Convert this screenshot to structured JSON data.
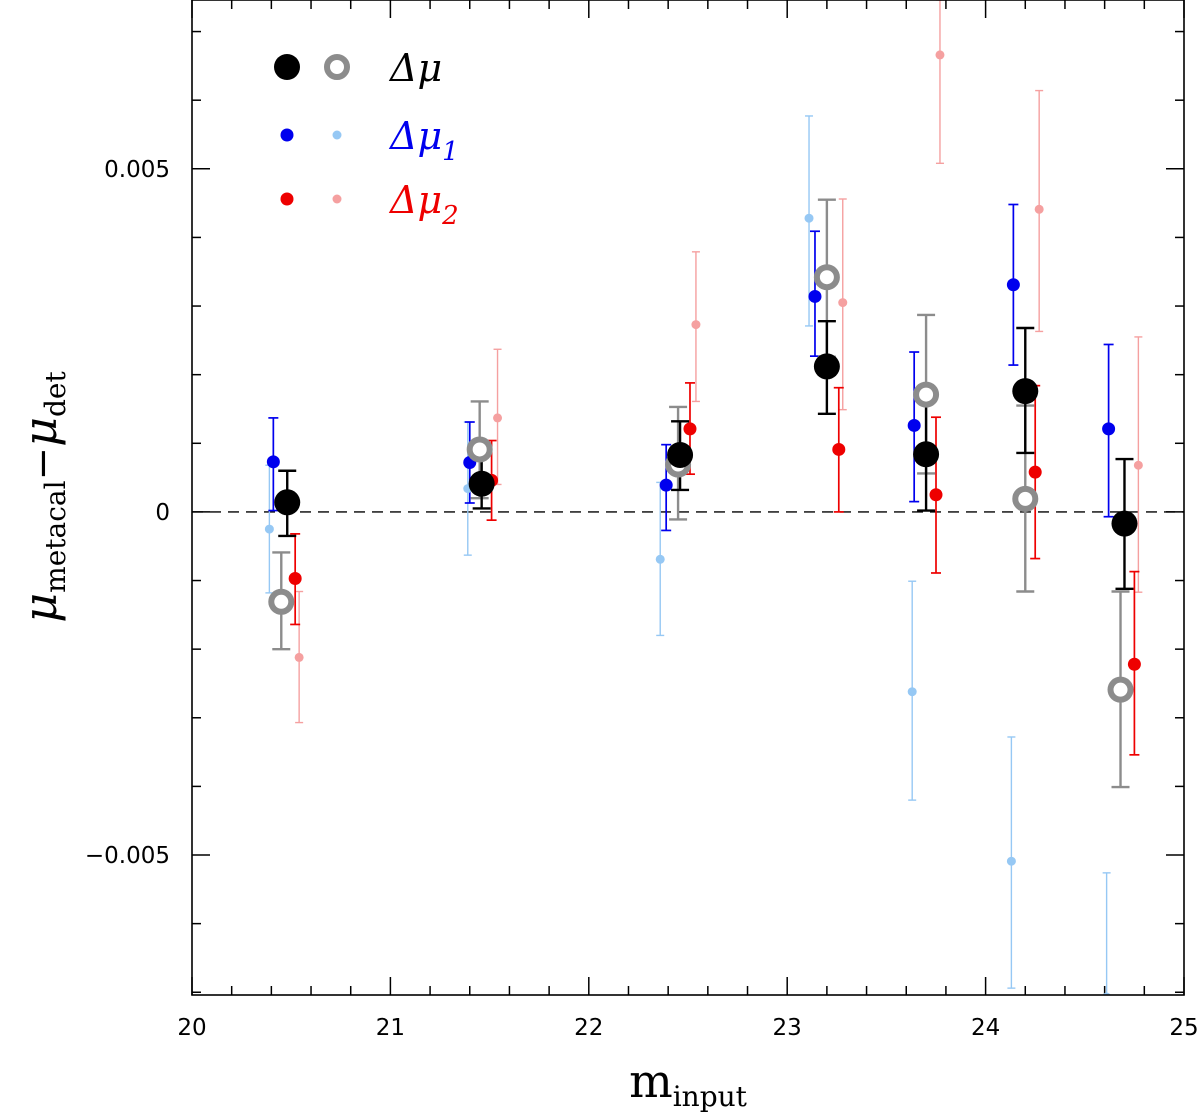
{
  "chart_data": {
    "type": "scatter",
    "title": "",
    "xlabel": {
      "main": "m",
      "sub": "input"
    },
    "ylabel": {
      "main": "μ",
      "sub1": "metacal",
      "minus": "−",
      "main2": "μ",
      "sub2": "det"
    },
    "xlim": [
      20,
      25
    ],
    "ylim": [
      -0.00704,
      0.00746
    ],
    "xticks": [
      {
        "value": 20,
        "label": "20"
      },
      {
        "value": 21,
        "label": "21"
      },
      {
        "value": 22,
        "label": "22"
      },
      {
        "value": 23,
        "label": "23"
      },
      {
        "value": 24,
        "label": "24"
      },
      {
        "value": 25,
        "label": "25"
      }
    ],
    "yticks": [
      {
        "value": -0.005,
        "label": "−0.005"
      },
      {
        "value": 0,
        "label": "0"
      },
      {
        "value": 0.005,
        "label": "0.005"
      }
    ],
    "reference_line": {
      "y": 0,
      "style": "dashed"
    },
    "legend": {
      "position": "top-left",
      "entries": [
        {
          "label": "Δμ",
          "sub": "",
          "color": "#000000",
          "series": [
            "dmu_filled",
            "dmu_open"
          ]
        },
        {
          "label": "Δμ",
          "sub": "1",
          "color": "#0000ee",
          "series": [
            "dmu1_dark",
            "dmu1_light"
          ]
        },
        {
          "label": "Δμ",
          "sub": "2",
          "color": "#ee0000",
          "series": [
            "dmu2_dark",
            "dmu2_light"
          ]
        }
      ]
    },
    "series": [
      {
        "name": "dmu_filled",
        "marker": "filled-circle-large",
        "color": "#000000",
        "points": [
          {
            "x": 20.48,
            "y": 0.00014,
            "lo": -0.00035,
            "hi": 0.0006
          },
          {
            "x": 21.46,
            "y": 0.00041,
            "lo": 5e-05,
            "hi": 0.00088
          },
          {
            "x": 22.46,
            "y": 0.00083,
            "lo": 0.00032,
            "hi": 0.00132
          },
          {
            "x": 23.2,
            "y": 0.00212,
            "lo": 0.00143,
            "hi": 0.00278
          },
          {
            "x": 23.7,
            "y": 0.00084,
            "lo": 2e-05,
            "hi": 0.00167
          },
          {
            "x": 24.2,
            "y": 0.00176,
            "lo": 0.00086,
            "hi": 0.00268
          },
          {
            "x": 24.7,
            "y": -0.00017,
            "lo": -0.00112,
            "hi": 0.00077
          }
        ]
      },
      {
        "name": "dmu_open",
        "marker": "open-circle-large",
        "color": "#8c8c8c",
        "points": [
          {
            "x": 20.45,
            "y": -0.00131,
            "lo": -0.002,
            "hi": -0.00059
          },
          {
            "x": 21.45,
            "y": 0.00091,
            "lo": 0.0002,
            "hi": 0.00161
          },
          {
            "x": 22.45,
            "y": 0.00069,
            "lo": -0.00011,
            "hi": 0.00153
          },
          {
            "x": 23.2,
            "y": 0.00342,
            "lo": 0.00226,
            "hi": 0.00455
          },
          {
            "x": 23.7,
            "y": 0.00171,
            "lo": 0.00056,
            "hi": 0.00287
          },
          {
            "x": 24.2,
            "y": 0.00019,
            "lo": -0.00116,
            "hi": 0.00155
          },
          {
            "x": 24.68,
            "y": -0.00259,
            "lo": -0.00401,
            "hi": -0.00116
          }
        ]
      },
      {
        "name": "dmu1_dark",
        "marker": "filled-circle-medium",
        "color": "#0000ee",
        "points": [
          {
            "x": 20.41,
            "y": 0.00073,
            "lo": 2e-05,
            "hi": 0.00137
          },
          {
            "x": 21.4,
            "y": 0.00072,
            "lo": 0.00013,
            "hi": 0.00131
          },
          {
            "x": 22.39,
            "y": 0.00039,
            "lo": -0.00027,
            "hi": 0.00098
          },
          {
            "x": 23.14,
            "y": 0.00314,
            "lo": 0.00227,
            "hi": 0.00409
          },
          {
            "x": 23.64,
            "y": 0.00126,
            "lo": 0.00015,
            "hi": 0.00233
          },
          {
            "x": 24.14,
            "y": 0.00331,
            "lo": 0.00214,
            "hi": 0.00448
          },
          {
            "x": 24.62,
            "y": 0.00121,
            "lo": -7e-05,
            "hi": 0.00244
          }
        ]
      },
      {
        "name": "dmu1_light",
        "marker": "filled-circle-small",
        "color": "#96c8f4",
        "points": [
          {
            "x": 20.39,
            "y": -0.00025,
            "lo": -0.00118,
            "hi": 0.00068
          },
          {
            "x": 21.39,
            "y": 0.00034,
            "lo": -0.00063,
            "hi": 0.00131
          },
          {
            "x": 22.36,
            "y": -0.00069,
            "lo": -0.0018,
            "hi": 0.00043
          },
          {
            "x": 23.11,
            "y": 0.00428,
            "lo": 0.00271,
            "hi": 0.00577
          },
          {
            "x": 23.63,
            "y": -0.00262,
            "lo": -0.0042,
            "hi": -0.00101
          },
          {
            "x": 24.13,
            "y": -0.00509,
            "lo": -0.00694,
            "hi": -0.00328
          },
          {
            "x": 24.61,
            "y": -0.00707,
            "lo": -0.0075,
            "hi": -0.00526
          }
        ]
      },
      {
        "name": "dmu2_dark",
        "marker": "filled-circle-medium",
        "color": "#ee0000",
        "points": [
          {
            "x": 20.52,
            "y": -0.00097,
            "lo": -0.00164,
            "hi": -0.00032
          },
          {
            "x": 21.51,
            "y": 0.00046,
            "lo": -0.00012,
            "hi": 0.00104
          },
          {
            "x": 22.51,
            "y": 0.00121,
            "lo": 0.00055,
            "hi": 0.00188
          },
          {
            "x": 23.26,
            "y": 0.00091,
            "lo": 0.0,
            "hi": 0.00181
          },
          {
            "x": 23.75,
            "y": 0.00025,
            "lo": -0.00089,
            "hi": 0.00138
          },
          {
            "x": 24.25,
            "y": 0.00058,
            "lo": -0.00068,
            "hi": 0.00184
          },
          {
            "x": 24.75,
            "y": -0.00222,
            "lo": -0.00354,
            "hi": -0.00087
          }
        ]
      },
      {
        "name": "dmu2_light",
        "marker": "filled-circle-small",
        "color": "#f5a0a0",
        "points": [
          {
            "x": 20.54,
            "y": -0.00212,
            "lo": -0.00307,
            "hi": -0.00116
          },
          {
            "x": 21.54,
            "y": 0.00137,
            "lo": 0.0004,
            "hi": 0.00237
          },
          {
            "x": 22.54,
            "y": 0.00273,
            "lo": 0.00161,
            "hi": 0.00379
          },
          {
            "x": 23.28,
            "y": 0.00305,
            "lo": 0.00149,
            "hi": 0.00456
          },
          {
            "x": 23.77,
            "y": 0.00666,
            "lo": 0.00508,
            "hi": 0.00746
          },
          {
            "x": 24.27,
            "y": 0.00441,
            "lo": 0.00263,
            "hi": 0.00614
          },
          {
            "x": 24.77,
            "y": 0.00068,
            "lo": -0.00117,
            "hi": 0.00255
          }
        ]
      }
    ]
  }
}
